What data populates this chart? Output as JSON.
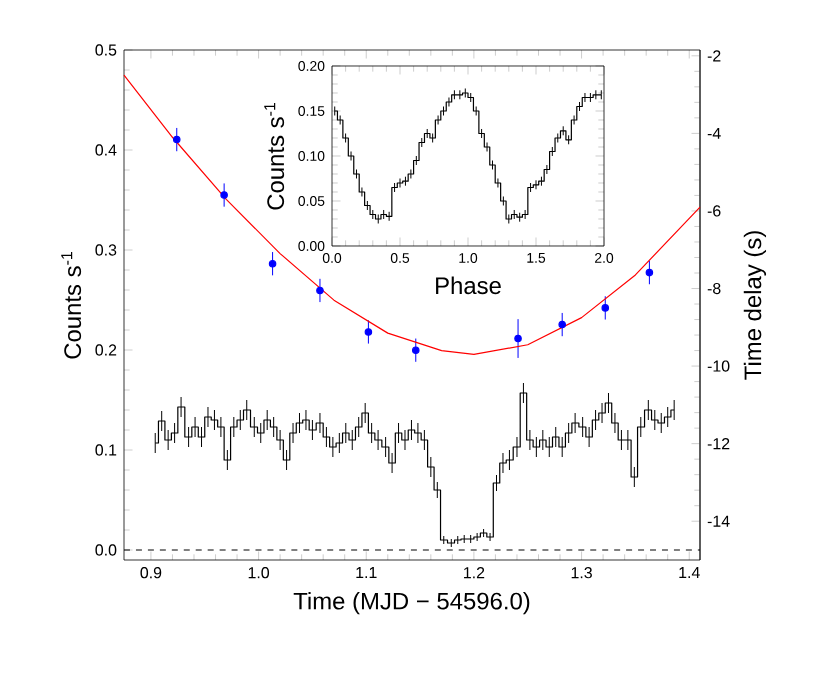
{
  "chart_data": [
    {
      "type": "step",
      "xlabel": "Time (MJD − 54596.0)",
      "ylabel": "Counts s$^{-1}$",
      "y2label": "Time delay (s)",
      "xlim": [
        0.875,
        1.41
      ],
      "ylim": [
        -0.01,
        0.5
      ],
      "y2lim": [
        -15.0,
        -1.85
      ],
      "xticks": [
        0.9,
        {
          "value": 1.0,
          "label": "1.0"
        },
        1.1,
        1.2,
        1.3,
        1.4
      ],
      "yticks": [
        {
          "value": 0,
          "label": "0.0"
        },
        0.1,
        0.2,
        0.3,
        0.4,
        0.5
      ],
      "y2ticks": [
        -14,
        -12,
        -10,
        -8,
        -6,
        -4,
        -2
      ],
      "ref_lines": [
        {
          "axis": "y",
          "value": 0,
          "line_style": "dashed"
        }
      ],
      "series": [
        {
          "type": "step",
          "color": "#000000",
          "x": [
            0.904,
            0.91,
            0.916,
            0.922,
            0.928,
            0.935,
            0.941,
            0.947,
            0.953,
            0.959,
            0.965,
            0.971,
            0.977,
            0.983,
            0.989,
            0.996,
            1.002,
            1.008,
            1.014,
            1.02,
            1.026,
            1.032,
            1.038,
            1.044,
            1.05,
            1.057,
            1.063,
            1.069,
            1.075,
            1.081,
            1.087,
            1.093,
            1.099,
            1.105,
            1.111,
            1.118,
            1.124,
            1.13,
            1.136,
            1.142,
            1.148,
            1.154,
            1.16,
            1.166,
            1.172,
            1.179,
            1.185,
            1.191,
            1.197,
            1.203,
            1.209,
            1.215,
            1.221,
            1.227,
            1.233,
            1.24,
            1.246,
            1.252,
            1.258,
            1.264,
            1.27,
            1.276,
            1.282,
            1.288,
            1.294,
            1.301,
            1.307,
            1.313,
            1.319,
            1.325,
            1.331,
            1.337,
            1.343,
            1.349,
            1.355,
            1.362,
            1.368,
            1.374,
            1.38,
            1.386
          ],
          "values": [
            0.107,
            0.129,
            0.11,
            0.117,
            0.143,
            0.113,
            0.123,
            0.113,
            0.133,
            0.13,
            0.123,
            0.09,
            0.123,
            0.13,
            0.14,
            0.123,
            0.117,
            0.13,
            0.123,
            0.11,
            0.09,
            0.117,
            0.127,
            0.13,
            0.12,
            0.127,
            0.113,
            0.103,
            0.107,
            0.117,
            0.11,
            0.123,
            0.137,
            0.117,
            0.11,
            0.103,
            0.087,
            0.117,
            0.11,
            0.12,
            0.117,
            0.11,
            0.083,
            0.06,
            0.01,
            0.007,
            0.01,
            0.011,
            0.011,
            0.013,
            0.017,
            0.013,
            0.067,
            0.087,
            0.09,
            0.103,
            0.157,
            0.11,
            0.103,
            0.11,
            0.103,
            0.113,
            0.103,
            0.117,
            0.127,
            0.123,
            0.113,
            0.13,
            0.137,
            0.147,
            0.127,
            0.11,
            0.11,
            0.073,
            0.123,
            0.14,
            0.13,
            0.127,
            0.133,
            0.14
          ],
          "errors": [
            0.01,
            0.01,
            0.01,
            0.01,
            0.01,
            0.01,
            0.01,
            0.01,
            0.01,
            0.01,
            0.01,
            0.01,
            0.01,
            0.01,
            0.01,
            0.01,
            0.01,
            0.01,
            0.01,
            0.01,
            0.01,
            0.01,
            0.01,
            0.01,
            0.01,
            0.01,
            0.01,
            0.01,
            0.01,
            0.01,
            0.01,
            0.01,
            0.01,
            0.01,
            0.01,
            0.01,
            0.01,
            0.01,
            0.01,
            0.01,
            0.01,
            0.01,
            0.01,
            0.008,
            0.004,
            0.004,
            0.004,
            0.004,
            0.004,
            0.004,
            0.004,
            0.004,
            0.008,
            0.01,
            0.01,
            0.01,
            0.01,
            0.01,
            0.01,
            0.01,
            0.01,
            0.01,
            0.01,
            0.01,
            0.01,
            0.01,
            0.01,
            0.01,
            0.01,
            0.01,
            0.01,
            0.01,
            0.01,
            0.01,
            0.01,
            0.01,
            0.01,
            0.01,
            0.01,
            0.01
          ]
        },
        {
          "type": "scatter",
          "axis": "y2",
          "marker": "circle",
          "color": "#0000ff",
          "x": [
            0.924,
            0.968,
            1.013,
            1.057,
            1.102,
            1.146,
            1.241,
            1.282,
            1.322,
            1.363
          ],
          "values": [
            -4.16,
            -5.59,
            -7.36,
            -8.05,
            -9.12,
            -9.59,
            -9.29,
            -8.93,
            -8.5,
            -7.59
          ],
          "errors": [
            0.3,
            0.3,
            0.3,
            0.3,
            0.3,
            0.3,
            0.5,
            0.3,
            0.3,
            0.3
          ]
        },
        {
          "type": "line",
          "axis": "y2",
          "color": "#ff0000",
          "x": [
            0.875,
            0.92,
            0.97,
            1.02,
            1.07,
            1.12,
            1.17,
            1.2,
            1.25,
            1.3,
            1.35,
            1.41
          ],
          "values": [
            -2.5,
            -4.1,
            -5.7,
            -7.1,
            -8.3,
            -9.15,
            -9.6,
            -9.7,
            -9.45,
            -8.75,
            -7.65,
            -5.9
          ]
        }
      ]
    },
    {
      "type": "step",
      "xlabel": "Phase",
      "ylabel": "Counts s$^{-1}$",
      "xlim": [
        0,
        2
      ],
      "ylim": [
        0,
        0.2
      ],
      "xticks": [
        {
          "value": 0,
          "label": "0.0"
        },
        0.5,
        {
          "value": 1,
          "label": "1.0"
        },
        1.5,
        {
          "value": 2,
          "label": "2.0"
        }
      ],
      "yticks": [
        {
          "value": 0,
          "label": "0.00"
        },
        0.05,
        {
          "value": 0.1,
          "label": "0.10"
        },
        0.15,
        {
          "value": 0.2,
          "label": "0.20"
        }
      ],
      "series": [
        {
          "color": "#000000",
          "x": [
            0.02,
            0.06,
            0.1,
            0.14,
            0.18,
            0.22,
            0.26,
            0.3,
            0.34,
            0.38,
            0.42,
            0.46,
            0.5,
            0.54,
            0.58,
            0.62,
            0.66,
            0.7,
            0.74,
            0.78,
            0.82,
            0.86,
            0.9,
            0.94,
            0.98,
            1.02,
            1.06,
            1.1,
            1.14,
            1.18,
            1.22,
            1.26,
            1.3,
            1.34,
            1.38,
            1.42,
            1.46,
            1.5,
            1.54,
            1.58,
            1.62,
            1.66,
            1.7,
            1.74,
            1.78,
            1.82,
            1.86,
            1.9,
            1.94,
            1.98
          ],
          "values": [
            0.15,
            0.14,
            0.12,
            0.1,
            0.08,
            0.06,
            0.045,
            0.035,
            0.03,
            0.035,
            0.033,
            0.065,
            0.07,
            0.072,
            0.08,
            0.095,
            0.115,
            0.125,
            0.12,
            0.14,
            0.15,
            0.16,
            0.168,
            0.168,
            0.17,
            0.165,
            0.15,
            0.125,
            0.11,
            0.09,
            0.07,
            0.05,
            0.03,
            0.035,
            0.032,
            0.035,
            0.065,
            0.068,
            0.072,
            0.085,
            0.105,
            0.12,
            0.128,
            0.118,
            0.14,
            0.155,
            0.165,
            0.165,
            0.168,
            0.168
          ],
          "errors": [
            0.005,
            0.005,
            0.005,
            0.005,
            0.005,
            0.005,
            0.005,
            0.005,
            0.005,
            0.005,
            0.005,
            0.005,
            0.005,
            0.005,
            0.005,
            0.005,
            0.005,
            0.005,
            0.005,
            0.005,
            0.005,
            0.005,
            0.005,
            0.005,
            0.005,
            0.005,
            0.005,
            0.005,
            0.005,
            0.005,
            0.005,
            0.005,
            0.005,
            0.005,
            0.005,
            0.005,
            0.005,
            0.005,
            0.005,
            0.005,
            0.005,
            0.005,
            0.005,
            0.005,
            0.005,
            0.005,
            0.005,
            0.005,
            0.005,
            0.005
          ]
        }
      ]
    }
  ]
}
